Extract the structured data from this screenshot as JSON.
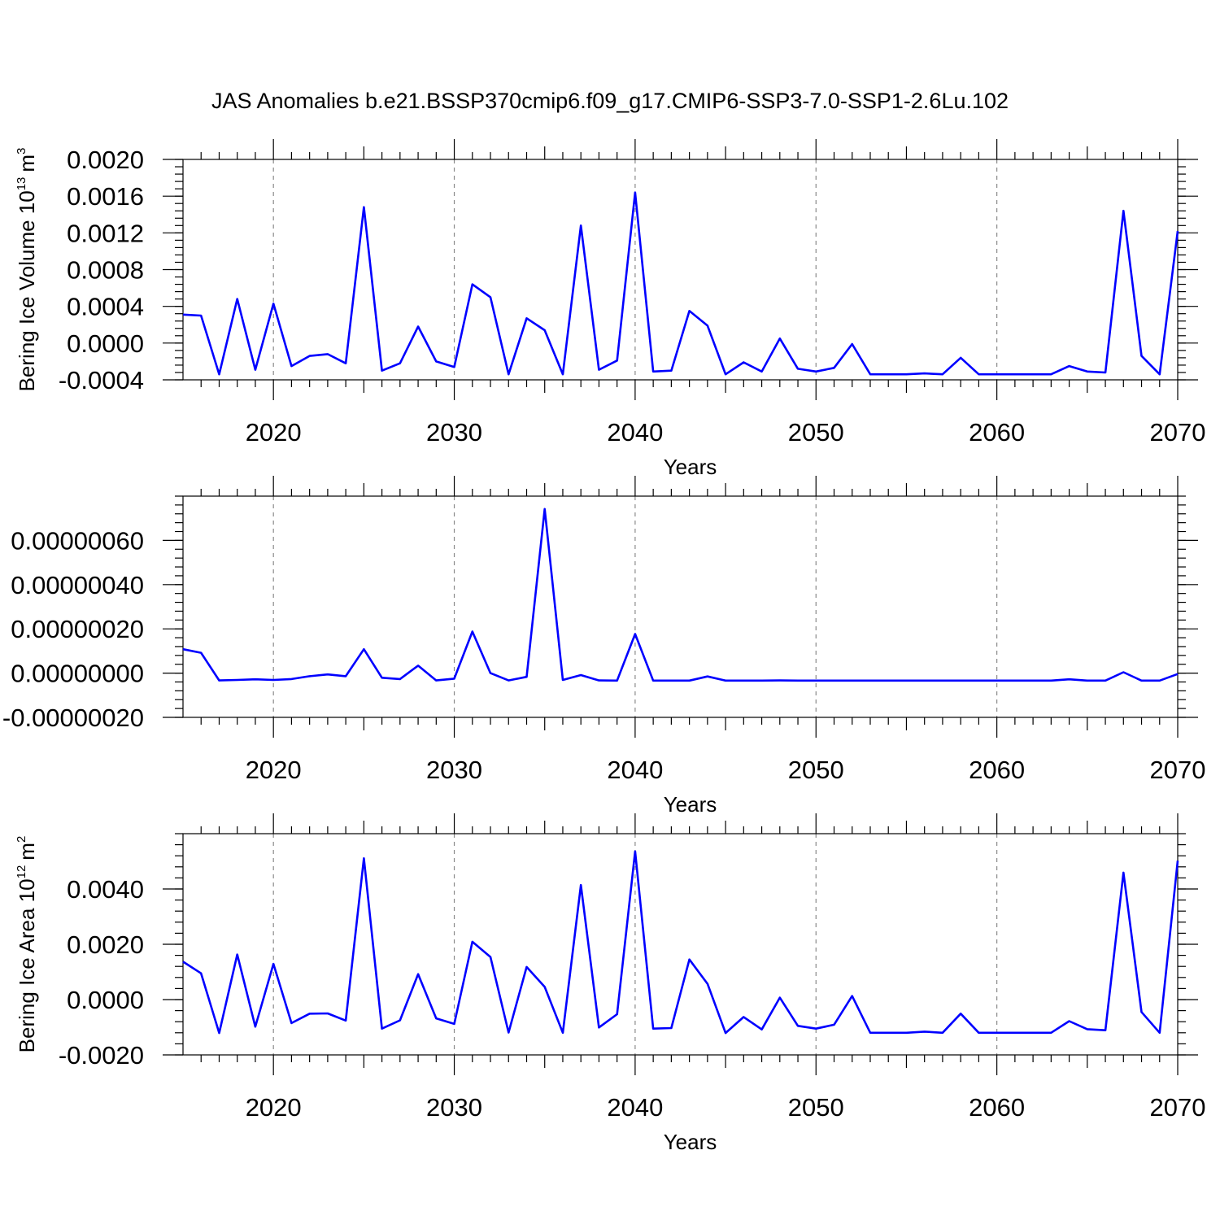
{
  "title": "JAS Anomalies b.e21.BSSP370cmip6.f09_g17.CMIP6-SSP3-7.0-SSP1-2.6Lu.102",
  "colors": {
    "line": "#0000ff",
    "grid": "#8a8a8a",
    "axes": "#000000"
  },
  "chart_data": [
    {
      "type": "line",
      "ylabel": "Bering Ice Volume 10",
      "ylabel_exp": "13",
      "ylabel_unit": "m",
      "ylabel_unit_exp": "3",
      "xlabel": "Years",
      "xlim": [
        2015,
        2070
      ],
      "ylim": [
        -0.0004,
        0.002
      ],
      "xticks": [
        2020,
        2030,
        2040,
        2050,
        2060,
        2070
      ],
      "xtick_labels": [
        "2020",
        "2030",
        "2040",
        "2050",
        "2060",
        "2070"
      ],
      "yticks": [
        -0.0004,
        0,
        0.0004,
        0.0008,
        0.0012,
        0.0016,
        0.002
      ],
      "ytick_labels": [
        "-0.0004",
        "0.0000",
        "0.0004",
        "0.0008",
        "0.0012",
        "0.0016",
        "0.0020"
      ],
      "grid": "x-dashed",
      "x": [
        2015,
        2016,
        2017,
        2018,
        2019,
        2020,
        2021,
        2022,
        2023,
        2024,
        2025,
        2026,
        2027,
        2028,
        2029,
        2030,
        2031,
        2032,
        2033,
        2034,
        2035,
        2036,
        2037,
        2038,
        2039,
        2040,
        2041,
        2042,
        2043,
        2044,
        2045,
        2046,
        2047,
        2048,
        2049,
        2050,
        2051,
        2052,
        2053,
        2054,
        2055,
        2056,
        2057,
        2058,
        2059,
        2060,
        2061,
        2062,
        2063,
        2064,
        2065,
        2066,
        2067,
        2068,
        2069,
        2070
      ],
      "series": [
        {
          "values": [
            0.00031,
            0.0003,
            -0.00034,
            0.00048,
            -0.00029,
            0.00043,
            -0.00025,
            -0.00014,
            -0.00012,
            -0.00022,
            0.00148,
            -0.0003,
            -0.00022,
            0.00018,
            -0.0002,
            -0.00026,
            0.00064,
            0.0005,
            -0.00034,
            0.00027,
            0.00014,
            -0.00034,
            0.00128,
            -0.00029,
            -0.00019,
            0.00164,
            -0.00031,
            -0.0003,
            0.00035,
            0.00019,
            -0.00034,
            -0.00021,
            -0.00031,
            5e-05,
            -0.00028,
            -0.00031,
            -0.00027,
            -1e-05,
            -0.00034,
            -0.00034,
            -0.00034,
            -0.00033,
            -0.00034,
            -0.00016,
            -0.00034,
            -0.00034,
            -0.00034,
            -0.00034,
            -0.00034,
            -0.00025,
            -0.00031,
            -0.00032,
            0.00144,
            -0.00014,
            -0.00034,
            0.00122
          ]
        }
      ]
    },
    {
      "type": "line",
      "ylabel": "",
      "xlabel": "Years",
      "xlim": [
        2015,
        2070
      ],
      "ylim": [
        -2e-07,
        8e-07
      ],
      "xticks": [
        2020,
        2030,
        2040,
        2050,
        2060,
        2070
      ],
      "xtick_labels": [
        "2020",
        "2030",
        "2040",
        "2050",
        "2060",
        "2070"
      ],
      "yticks": [
        -2e-07,
        0,
        2e-07,
        4e-07,
        6e-07
      ],
      "ytick_labels": [
        "-0.00000020",
        "0.00000000",
        "0.00000020",
        "0.00000040",
        "0.00000060"
      ],
      "grid": "x-dashed",
      "x": [
        2015,
        2016,
        2017,
        2018,
        2019,
        2020,
        2021,
        2022,
        2023,
        2024,
        2025,
        2026,
        2027,
        2028,
        2029,
        2030,
        2031,
        2032,
        2033,
        2034,
        2035,
        2036,
        2037,
        2038,
        2039,
        2040,
        2041,
        2042,
        2043,
        2044,
        2045,
        2046,
        2047,
        2048,
        2049,
        2050,
        2051,
        2052,
        2053,
        2054,
        2055,
        2056,
        2057,
        2058,
        2059,
        2060,
        2061,
        2062,
        2063,
        2064,
        2065,
        2066,
        2067,
        2068,
        2069,
        2070
      ],
      "series": [
        {
          "values": [
            1.08e-07,
            9.2e-08,
            -3.3e-08,
            -3.1e-08,
            -2.8e-08,
            -3.1e-08,
            -2.7e-08,
            -1.4e-08,
            -6e-09,
            -1.4e-08,
            1.08e-07,
            -2.1e-08,
            -2.7e-08,
            3.4e-08,
            -3.3e-08,
            -2.5e-08,
            1.88e-07,
            0,
            -3.3e-08,
            -1.7e-08,
            7.42e-07,
            -3.1e-08,
            -9e-09,
            -3.3e-08,
            -3.4e-08,
            1.77e-07,
            -3.4e-08,
            -3.4e-08,
            -3.4e-08,
            -1.5e-08,
            -3.4e-08,
            -3.4e-08,
            -3.4e-08,
            -3.3e-08,
            -3.4e-08,
            -3.4e-08,
            -3.4e-08,
            -3.4e-08,
            -3.4e-08,
            -3.4e-08,
            -3.4e-08,
            -3.4e-08,
            -3.4e-08,
            -3.4e-08,
            -3.4e-08,
            -3.4e-08,
            -3.4e-08,
            -3.4e-08,
            -3.4e-08,
            -2.8e-08,
            -3.4e-08,
            -3.4e-08,
            4e-09,
            -3.4e-08,
            -3.4e-08,
            -4e-09
          ]
        }
      ]
    },
    {
      "type": "line",
      "ylabel": "Bering Ice Area 10",
      "ylabel_exp": "12",
      "ylabel_unit": "m",
      "ylabel_unit_exp": "2",
      "xlabel": "Years",
      "xlim": [
        2015,
        2070
      ],
      "ylim": [
        -0.002,
        0.006
      ],
      "xticks": [
        2020,
        2030,
        2040,
        2050,
        2060,
        2070
      ],
      "xtick_labels": [
        "2020",
        "2030",
        "2040",
        "2050",
        "2060",
        "2070"
      ],
      "yticks": [
        -0.002,
        0,
        0.002,
        0.004
      ],
      "ytick_labels": [
        "-0.0020",
        "0.0000",
        "0.0020",
        "0.0040"
      ],
      "grid": "x-dashed",
      "x": [
        2015,
        2016,
        2017,
        2018,
        2019,
        2020,
        2021,
        2022,
        2023,
        2024,
        2025,
        2026,
        2027,
        2028,
        2029,
        2030,
        2031,
        2032,
        2033,
        2034,
        2035,
        2036,
        2037,
        2038,
        2039,
        2040,
        2041,
        2042,
        2043,
        2044,
        2045,
        2046,
        2047,
        2048,
        2049,
        2050,
        2051,
        2052,
        2053,
        2054,
        2055,
        2056,
        2057,
        2058,
        2059,
        2060,
        2061,
        2062,
        2063,
        2064,
        2065,
        2066,
        2067,
        2068,
        2069,
        2070
      ],
      "series": [
        {
          "values": [
            0.00137,
            0.00095,
            -0.00121,
            0.00163,
            -0.00098,
            0.00129,
            -0.00085,
            -0.00051,
            -0.0005,
            -0.00076,
            0.00511,
            -0.00105,
            -0.00075,
            0.00092,
            -0.00068,
            -0.00088,
            0.00209,
            0.00154,
            -0.00119,
            0.00118,
            0.00046,
            -0.0012,
            0.00414,
            -0.00101,
            -0.00053,
            0.00536,
            -0.00105,
            -0.00103,
            0.00145,
            0.00057,
            -0.00121,
            -0.00063,
            -0.00108,
            7e-05,
            -0.00095,
            -0.00105,
            -0.00091,
            0.00013,
            -0.0012,
            -0.0012,
            -0.0012,
            -0.00116,
            -0.0012,
            -0.00051,
            -0.0012,
            -0.0012,
            -0.0012,
            -0.0012,
            -0.0012,
            -0.00078,
            -0.00107,
            -0.00111,
            0.00459,
            -0.00045,
            -0.0012,
            0.00502
          ]
        }
      ]
    }
  ]
}
